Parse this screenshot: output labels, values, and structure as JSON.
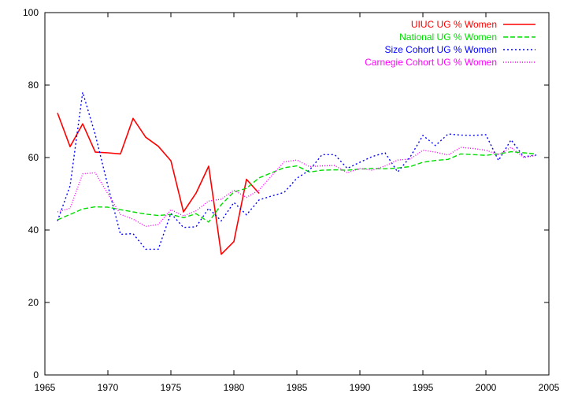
{
  "chart_data": {
    "type": "line",
    "title": "",
    "xlabel": "",
    "ylabel": "",
    "xlim": [
      1965,
      2005
    ],
    "ylim": [
      0,
      100
    ],
    "xticks": [
      1965,
      1970,
      1975,
      1980,
      1985,
      1990,
      1995,
      2000,
      2005
    ],
    "yticks": [
      0,
      20,
      40,
      60,
      80,
      100
    ],
    "grid": false,
    "legend_position": "top-right",
    "series": [
      {
        "name": "UIUC UG % Women",
        "color": "#ff0000",
        "dash": "solid",
        "x": [
          1966,
          1967,
          1968,
          1969,
          1970,
          1971,
          1972,
          1973,
          1974,
          1975,
          1976,
          1977,
          1978,
          1979,
          1980,
          1981,
          1982
        ],
        "y": [
          72.3,
          63.0,
          69.3,
          61.5,
          61.3,
          61.0,
          70.8,
          65.6,
          63.1,
          59.1,
          45.0,
          50.2,
          57.6,
          33.3,
          36.8,
          54.0,
          50.1
        ]
      },
      {
        "name": "National UG % Women",
        "color": "#00dd00",
        "dash": "dashed",
        "x": [
          1966,
          1967,
          1968,
          1969,
          1970,
          1971,
          1972,
          1973,
          1974,
          1975,
          1976,
          1977,
          1978,
          1979,
          1980,
          1981,
          1982,
          1983,
          1984,
          1985,
          1986,
          1987,
          1988,
          1989,
          1990,
          1991,
          1992,
          1993,
          1994,
          1995,
          1996,
          1997,
          1998,
          1999,
          2000,
          2001,
          2002,
          2003,
          2004
        ],
        "y": [
          42.8,
          44.3,
          45.8,
          46.4,
          46.3,
          45.6,
          45.0,
          44.4,
          44.0,
          44.3,
          43.4,
          44.5,
          42.2,
          47.0,
          50.5,
          51.5,
          54.4,
          55.8,
          57.2,
          57.7,
          56.0,
          56.5,
          56.6,
          56.5,
          56.8,
          57.0,
          56.9,
          57.1,
          57.5,
          58.7,
          59.2,
          59.5,
          61.0,
          60.8,
          60.6,
          61.0,
          61.6,
          61.3,
          61.0
        ]
      },
      {
        "name": "Size Cohort UG % Women",
        "color": "#0000ff",
        "dash": "dotted",
        "x": [
          1966,
          1967,
          1968,
          1969,
          1970,
          1971,
          1972,
          1973,
          1974,
          1975,
          1976,
          1977,
          1978,
          1979,
          1980,
          1981,
          1982,
          1983,
          1984,
          1985,
          1986,
          1987,
          1988,
          1989,
          1990,
          1991,
          1992,
          1993,
          1994,
          1995,
          1996,
          1997,
          1998,
          1999,
          2000,
          2001,
          2002,
          2003,
          2004
        ],
        "y": [
          42.5,
          52.2,
          78.0,
          66.3,
          52.2,
          38.8,
          39.0,
          34.7,
          34.7,
          44.6,
          40.7,
          40.9,
          46.0,
          42.5,
          47.6,
          44.2,
          48.3,
          49.4,
          50.4,
          54.3,
          56.5,
          60.8,
          60.8,
          57.0,
          58.7,
          60.3,
          61.3,
          56.0,
          60.2,
          66.1,
          63.3,
          66.5,
          66.2,
          66.1,
          66.3,
          59.2,
          64.9,
          60.2,
          60.7
        ]
      },
      {
        "name": "Carnegie Cohort UG % Women",
        "color": "#ff00ff",
        "dash": "dotted-fine",
        "x": [
          1966,
          1967,
          1968,
          1969,
          1970,
          1971,
          1972,
          1973,
          1974,
          1975,
          1976,
          1977,
          1978,
          1979,
          1980,
          1981,
          1982,
          1983,
          1984,
          1985,
          1986,
          1987,
          1988,
          1989,
          1990,
          1991,
          1992,
          1993,
          1994,
          1995,
          1996,
          1997,
          1998,
          1999,
          2000,
          2001,
          2002,
          2003,
          2004
        ],
        "y": [
          45.0,
          46.0,
          55.5,
          55.8,
          50.0,
          44.3,
          43.0,
          41.0,
          41.5,
          45.6,
          43.9,
          45.3,
          48.0,
          48.5,
          51.0,
          49.0,
          51.0,
          55.0,
          58.8,
          59.3,
          57.5,
          57.7,
          57.8,
          55.8,
          57.0,
          56.5,
          57.7,
          59.3,
          59.6,
          62.0,
          61.5,
          60.7,
          62.8,
          62.5,
          62.0,
          60.8,
          62.8,
          60.0,
          60.6
        ]
      }
    ]
  }
}
